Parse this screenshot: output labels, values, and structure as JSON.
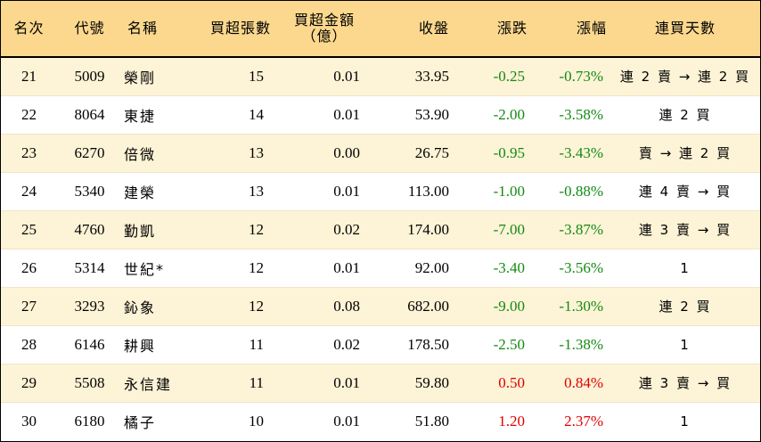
{
  "headers": {
    "rank": "名次",
    "code": "代號",
    "name": "名稱",
    "shares": "買超張數",
    "amount_line1": "買超金額",
    "amount_line2": "（億）",
    "close": "收盤",
    "change": "漲跌",
    "pct": "漲幅",
    "days": "連買天數"
  },
  "colors": {
    "header_bg": "#fbd88d",
    "row_alt_bg": "#fdf3d6",
    "negative": "#138a13",
    "positive": "#e00000"
  },
  "rows": [
    {
      "rank": "21",
      "code": "5009",
      "name": "榮剛",
      "shares": "15",
      "amount": "0.01",
      "close": "33.95",
      "change": "-0.25",
      "pct": "-0.73%",
      "days": "連 2 賣 → 連 2 買",
      "dir": "neg"
    },
    {
      "rank": "22",
      "code": "8064",
      "name": "東捷",
      "shares": "14",
      "amount": "0.01",
      "close": "53.90",
      "change": "-2.00",
      "pct": "-3.58%",
      "days": "連 2 買",
      "dir": "neg"
    },
    {
      "rank": "23",
      "code": "6270",
      "name": "倍微",
      "shares": "13",
      "amount": "0.00",
      "close": "26.75",
      "change": "-0.95",
      "pct": "-3.43%",
      "days": "賣 → 連 2 買",
      "dir": "neg"
    },
    {
      "rank": "24",
      "code": "5340",
      "name": "建榮",
      "shares": "13",
      "amount": "0.01",
      "close": "113.00",
      "change": "-1.00",
      "pct": "-0.88%",
      "days": "連 4 賣 → 買",
      "dir": "neg"
    },
    {
      "rank": "25",
      "code": "4760",
      "name": "勤凱",
      "shares": "12",
      "amount": "0.02",
      "close": "174.00",
      "change": "-7.00",
      "pct": "-3.87%",
      "days": "連 3 賣 → 買",
      "dir": "neg"
    },
    {
      "rank": "26",
      "code": "5314",
      "name": "世紀*",
      "shares": "12",
      "amount": "0.01",
      "close": "92.00",
      "change": "-3.40",
      "pct": "-3.56%",
      "days": "1",
      "dir": "neg"
    },
    {
      "rank": "27",
      "code": "3293",
      "name": "鈊象",
      "shares": "12",
      "amount": "0.08",
      "close": "682.00",
      "change": "-9.00",
      "pct": "-1.30%",
      "days": "連 2 買",
      "dir": "neg"
    },
    {
      "rank": "28",
      "code": "6146",
      "name": "耕興",
      "shares": "11",
      "amount": "0.02",
      "close": "178.50",
      "change": "-2.50",
      "pct": "-1.38%",
      "days": "1",
      "dir": "neg"
    },
    {
      "rank": "29",
      "code": "5508",
      "name": "永信建",
      "shares": "11",
      "amount": "0.01",
      "close": "59.80",
      "change": "0.50",
      "pct": "0.84%",
      "days": "連 3 賣 → 買",
      "dir": "pos"
    },
    {
      "rank": "30",
      "code": "6180",
      "name": "橘子",
      "shares": "10",
      "amount": "0.01",
      "close": "51.80",
      "change": "1.20",
      "pct": "2.37%",
      "days": "1",
      "dir": "pos"
    }
  ]
}
